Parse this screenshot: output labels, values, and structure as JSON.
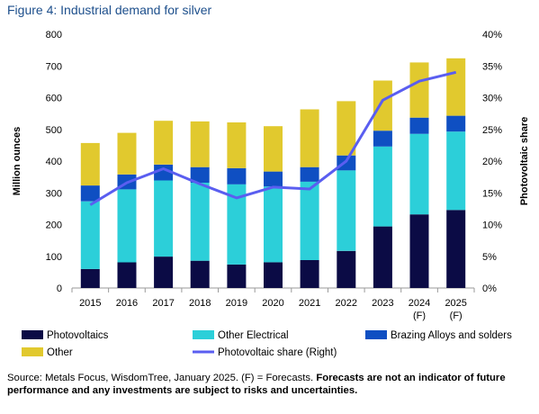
{
  "figure_title": "Figure 4: Industrial demand for silver",
  "source_text": "Source: Metals Focus, WisdomTree, January 2025. (F) = Forecasts.",
  "source_bold": "Forecasts are not an indicator of future performance and any investments are subject to risks and uncertainties.",
  "colors": {
    "photovoltaics": "#0b0b45",
    "other_electrical": "#2ccfd9",
    "brazing": "#0f4fc2",
    "other": "#e1c92e",
    "line": "#5a5ef0"
  },
  "chart_data": {
    "type": "bar",
    "stacked": true,
    "categories": [
      "2015",
      "2016",
      "2017",
      "2018",
      "2019",
      "2020",
      "2021",
      "2022",
      "2023",
      "2024",
      "2025"
    ],
    "category_sublabels": [
      "",
      "",
      "",
      "",
      "",
      "",
      "",
      "",
      "",
      "(F)",
      "(F)"
    ],
    "series": [
      {
        "name": "Photovoltaics",
        "values": [
          60,
          81,
          99,
          86,
          74,
          81,
          88,
          117,
          194,
          232,
          246
        ]
      },
      {
        "name": "Other Electrical",
        "values": [
          213,
          230,
          240,
          246,
          253,
          239,
          247,
          254,
          252,
          254,
          247
        ]
      },
      {
        "name": "Brazing Alloys and solders",
        "values": [
          50,
          47,
          50,
          49,
          51,
          47,
          46,
          47,
          50,
          51,
          50
        ]
      },
      {
        "name": "Other",
        "values": [
          134,
          131,
          138,
          144,
          144,
          143,
          182,
          171,
          158,
          174,
          181
        ]
      }
    ],
    "line_series": {
      "name": "Photovoltaic share (Right)",
      "axis": "right",
      "values": [
        13.1,
        16.6,
        18.8,
        16.4,
        14.2,
        15.9,
        15.6,
        20.0,
        29.6,
        32.6,
        34.0
      ]
    },
    "ylabel": "Million ounces",
    "y2label": "Photovoltaic share",
    "ylim": [
      0,
      800
    ],
    "y_ticks": [
      "0",
      "100",
      "200",
      "300",
      "400",
      "500",
      "600",
      "700",
      "800"
    ],
    "y2lim": [
      0,
      40
    ],
    "y2_ticks": [
      "0%",
      "5%",
      "10%",
      "15%",
      "20%",
      "25%",
      "30%",
      "35%",
      "40%"
    ],
    "legend": {
      "placement": "bottom",
      "entries": [
        "Photovoltaics",
        "Other Electrical",
        "Brazing Alloys and solders",
        "Other",
        "Photovoltaic share (Right)"
      ]
    },
    "grid": false
  }
}
